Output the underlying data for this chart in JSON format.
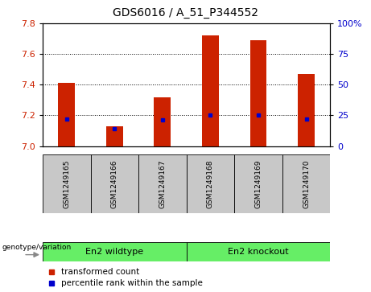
{
  "title": "GDS6016 / A_51_P344552",
  "samples": [
    "GSM1249165",
    "GSM1249166",
    "GSM1249167",
    "GSM1249168",
    "GSM1249169",
    "GSM1249170"
  ],
  "transformed_counts": [
    7.41,
    7.13,
    7.32,
    7.72,
    7.69,
    7.47
  ],
  "percentile_ranks": [
    22,
    14,
    21,
    25,
    25,
    22
  ],
  "ylim_left": [
    7.0,
    7.8
  ],
  "ylim_right": [
    0,
    100
  ],
  "yticks_left": [
    7.0,
    7.2,
    7.4,
    7.6,
    7.8
  ],
  "yticks_right": [
    0,
    25,
    50,
    75,
    100
  ],
  "bar_color": "#CC2200",
  "percentile_color": "#0000CC",
  "bar_width": 0.35,
  "bg_color_plot": "#FFFFFF",
  "bg_color_xticklabel": "#C8C8C8",
  "bg_color_group": "#66EE66",
  "grid_color": "#000000",
  "legend_labels": [
    "transformed count",
    "percentile rank within the sample"
  ],
  "ylabel_left_color": "#CC2200",
  "ylabel_right_color": "#0000CC",
  "title_fontsize": 10,
  "tick_fontsize": 8,
  "sample_fontsize": 6.5,
  "group_fontsize": 8,
  "legend_fontsize": 7.5
}
